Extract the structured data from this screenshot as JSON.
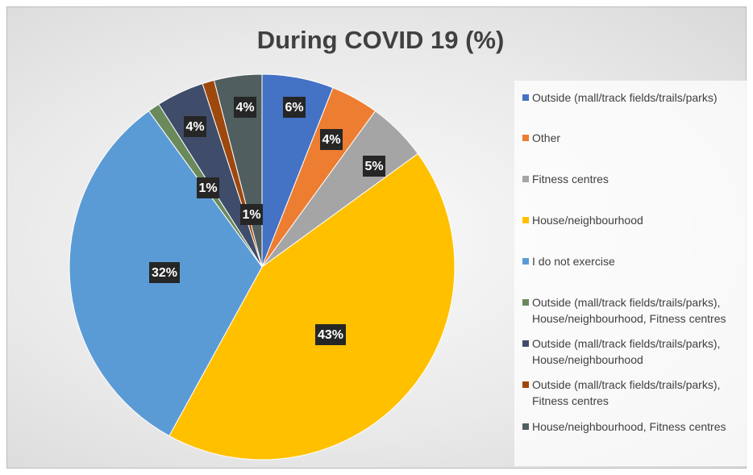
{
  "chart_data": {
    "type": "pie",
    "title": "During COVID 19 (%)",
    "categories": [
      "Outside (mall/track fields/trails/parks)",
      "Other",
      "Fitness centres",
      "House/neighbourhood",
      "I do not exercise",
      "Outside (mall/track fields/trails/parks), House/neighbourhood, Fitness centres",
      "Outside (mall/track fields/trails/parks), House/neighbourhood",
      "Outside (mall/track fields/trails/parks), Fitness centres",
      "House/neighbourhood, Fitness centres"
    ],
    "values": [
      6,
      4,
      5,
      43,
      32,
      1,
      4,
      1,
      4
    ],
    "value_labels": [
      "6%",
      "4%",
      "5%",
      "43%",
      "32%",
      "1%",
      "4%",
      "1%",
      "4%"
    ],
    "colors": [
      "#4472c4",
      "#ed7d31",
      "#a5a5a5",
      "#ffc000",
      "#5b9bd5",
      "#6a8a5c",
      "#3f4d6b",
      "#9e480e",
      "#515e60"
    ],
    "legend": "right"
  }
}
